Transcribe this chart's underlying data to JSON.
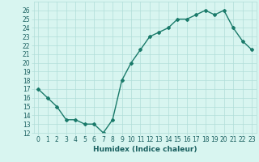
{
  "x": [
    0,
    1,
    2,
    3,
    4,
    5,
    6,
    7,
    8,
    9,
    10,
    11,
    12,
    13,
    14,
    15,
    16,
    17,
    18,
    19,
    20,
    21,
    22,
    23
  ],
  "y": [
    17,
    16,
    15,
    13.5,
    13.5,
    13,
    13,
    12,
    13.5,
    18,
    20,
    21.5,
    23,
    23.5,
    24,
    25,
    25,
    25.5,
    26,
    25.5,
    26,
    24,
    22.5,
    21.5
  ],
  "line_color": "#1a7a6a",
  "marker": "D",
  "marker_size": 2,
  "bg_color": "#d8f5f0",
  "grid_color": "#b0ddd8",
  "xlabel": "Humidex (Indice chaleur)",
  "ylabel": "",
  "ylim": [
    12,
    27
  ],
  "xlim": [
    -0.5,
    23.5
  ],
  "yticks": [
    12,
    13,
    14,
    15,
    16,
    17,
    18,
    19,
    20,
    21,
    22,
    23,
    24,
    25,
    26
  ],
  "xticks": [
    0,
    1,
    2,
    3,
    4,
    5,
    6,
    7,
    8,
    9,
    10,
    11,
    12,
    13,
    14,
    15,
    16,
    17,
    18,
    19,
    20,
    21,
    22,
    23
  ],
  "tick_fontsize": 5.5,
  "xlabel_fontsize": 6.5,
  "line_width": 1.0,
  "tick_color": "#1a6060"
}
